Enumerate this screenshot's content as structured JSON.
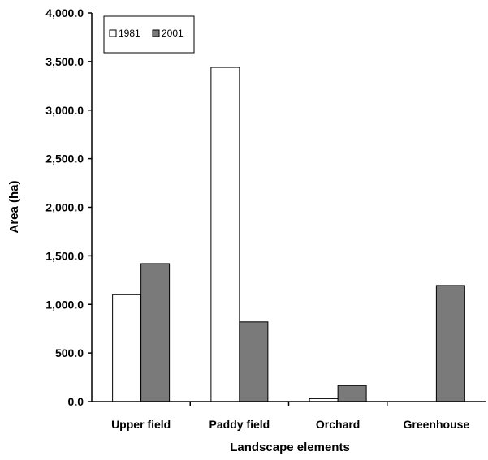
{
  "chart_data": {
    "type": "bar",
    "title": "",
    "xlabel": "Landscape elements",
    "ylabel": "Area (ha)",
    "categories": [
      "Upper field",
      "Paddy field",
      "Orchard",
      "Greenhouse"
    ],
    "series": [
      {
        "name": "1981",
        "values": [
          1100.0,
          3440.0,
          30.0,
          0.0
        ],
        "color": "#ffffff"
      },
      {
        "name": "2001",
        "values": [
          1420.0,
          820.0,
          165.0,
          1195.0
        ],
        "color": "#7a7a7a"
      }
    ],
    "ylim": [
      0,
      4000
    ],
    "yticks": [
      0,
      500,
      1000,
      1500,
      2000,
      2500,
      3000,
      3500,
      4000
    ],
    "ytick_labels": [
      "0.0",
      "500.0",
      "1,000.0",
      "1,500.0",
      "2,000.0",
      "2,500.0",
      "3,000.0",
      "3,500.0",
      "4,000.0"
    ],
    "grid": false,
    "legend_position": "top-left",
    "bar_edge_color": "#000000"
  }
}
